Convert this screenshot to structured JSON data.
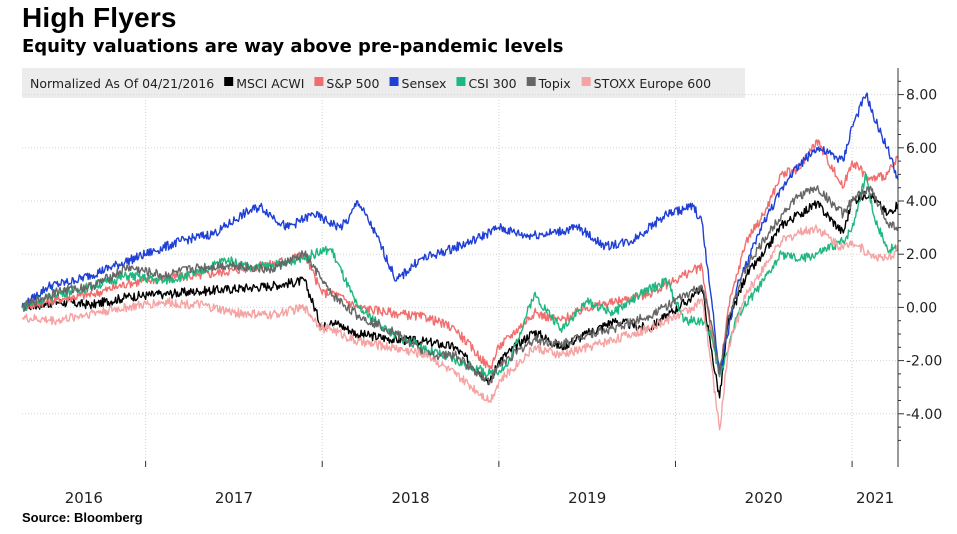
{
  "title": "High Flyers",
  "subtitle": "Equity valuations are way above pre-pandemic levels",
  "source": "Source: Bloomberg",
  "colors": {
    "MSCI ACWI": "#000000",
    "S&P 500": "#f26d6d",
    "Sensex": "#1f3fd6",
    "CSI 300": "#1db87f",
    "Topix": "#666666",
    "STOXX Europe 600": "#f5a3a3"
  },
  "chart_data": {
    "type": "line",
    "title": "High Flyers",
    "subtitle": "Equity valuations are way above pre-pandemic levels",
    "legend_note": "Normalized As Of 04/21/2016",
    "legend_position": "top",
    "grid": true,
    "ylim": [
      -6,
      9
    ],
    "yticks": [
      8,
      6,
      4,
      2,
      0,
      -2,
      -4
    ],
    "ytick_labels": [
      "8.00",
      "6.00",
      "4.00",
      "2.00",
      "0.00",
      "-2.00",
      "-4.00"
    ],
    "xlim": [
      2016.3,
      2021.26
    ],
    "xtick_labels": [
      "2016",
      "2017",
      "2018",
      "2019",
      "2020",
      "2021"
    ],
    "xtick_positions": [
      2016.65,
      2017.5,
      2018.5,
      2019.5,
      2020.5,
      2021.13
    ],
    "year_dividers": [
      2017.0,
      2018.0,
      2019.0,
      2020.0,
      2021.0
    ],
    "series": [
      {
        "name": "MSCI ACWI",
        "x": [
          2016.3,
          2016.5,
          2016.7,
          2016.9,
          2017.1,
          2017.3,
          2017.5,
          2017.7,
          2017.9,
          2018.0,
          2018.05,
          2018.2,
          2018.4,
          2018.6,
          2018.75,
          2018.95,
          2019.0,
          2019.2,
          2019.35,
          2019.5,
          2019.65,
          2019.85,
          2020.1,
          2020.15,
          2020.2,
          2020.25,
          2020.3,
          2020.4,
          2020.5,
          2020.6,
          2020.7,
          2020.8,
          2020.95,
          2021.0,
          2021.1,
          2021.2,
          2021.26
        ],
        "y": [
          0,
          0.2,
          0.1,
          0.4,
          0.5,
          0.6,
          0.7,
          0.8,
          1.0,
          -0.8,
          -0.5,
          -1.0,
          -1.2,
          -1.3,
          -1.5,
          -2.8,
          -2.0,
          -0.9,
          -1.5,
          -1.0,
          -0.5,
          -0.8,
          0.4,
          0.8,
          -1.5,
          -3.4,
          -0.5,
          1.2,
          2.0,
          3.1,
          3.5,
          3.9,
          2.8,
          4.0,
          4.3,
          3.5,
          3.9
        ]
      },
      {
        "name": "S&P 500",
        "x": [
          2016.3,
          2016.5,
          2016.7,
          2016.9,
          2017.1,
          2017.3,
          2017.5,
          2017.7,
          2017.9,
          2018.0,
          2018.05,
          2018.2,
          2018.4,
          2018.6,
          2018.75,
          2018.95,
          2019.0,
          2019.2,
          2019.35,
          2019.5,
          2019.65,
          2019.85,
          2020.1,
          2020.15,
          2020.2,
          2020.25,
          2020.3,
          2020.4,
          2020.5,
          2020.6,
          2020.7,
          2020.8,
          2020.95,
          2021.0,
          2021.1,
          2021.2,
          2021.26
        ],
        "y": [
          0,
          0.3,
          0.5,
          0.9,
          1.1,
          1.2,
          1.4,
          1.6,
          2.0,
          0.5,
          0.6,
          0.0,
          -0.2,
          -0.4,
          -0.8,
          -2.3,
          -1.5,
          -0.2,
          -0.5,
          0.0,
          0.2,
          0.5,
          1.4,
          1.5,
          -0.8,
          -2.6,
          0.0,
          2.5,
          3.5,
          5.0,
          5.2,
          6.3,
          4.5,
          5.5,
          4.8,
          5.0,
          5.6
        ]
      },
      {
        "name": "Sensex",
        "x": [
          2016.3,
          2016.45,
          2016.6,
          2016.8,
          2017.0,
          2017.2,
          2017.4,
          2017.55,
          2017.65,
          2017.8,
          2017.95,
          2018.1,
          2018.15,
          2018.2,
          2018.3,
          2018.42,
          2018.55,
          2018.65,
          2018.85,
          2019.0,
          2019.15,
          2019.3,
          2019.45,
          2019.6,
          2019.75,
          2019.95,
          2020.1,
          2020.15,
          2020.2,
          2020.25,
          2020.35,
          2020.5,
          2020.65,
          2020.8,
          2020.95,
          2021.0,
          2021.08,
          2021.12,
          2021.2,
          2021.26
        ],
        "y": [
          0,
          0.8,
          1.0,
          1.5,
          2.0,
          2.5,
          2.8,
          3.5,
          3.8,
          3.0,
          3.5,
          3.0,
          3.3,
          4.0,
          2.8,
          1.0,
          1.8,
          2.0,
          2.5,
          3.0,
          2.7,
          2.8,
          3.0,
          2.3,
          2.5,
          3.5,
          3.8,
          3.2,
          0.5,
          -2.5,
          0.8,
          3.2,
          5.0,
          6.0,
          5.5,
          6.8,
          8.0,
          7.2,
          6.0,
          4.8
        ]
      },
      {
        "name": "CSI 300",
        "x": [
          2016.3,
          2016.5,
          2016.7,
          2016.9,
          2017.1,
          2017.3,
          2017.45,
          2017.6,
          2017.75,
          2017.95,
          2018.05,
          2018.2,
          2018.4,
          2018.6,
          2018.75,
          2018.95,
          2019.05,
          2019.2,
          2019.35,
          2019.5,
          2019.65,
          2019.8,
          2019.95,
          2020.05,
          2020.15,
          2020.2,
          2020.25,
          2020.35,
          2020.5,
          2020.6,
          2020.7,
          2020.8,
          2020.95,
          2021.0,
          2021.08,
          2021.12,
          2021.2,
          2021.26
        ],
        "y": [
          0,
          0.5,
          0.8,
          1.2,
          1.0,
          1.3,
          1.8,
          1.5,
          1.6,
          2.0,
          2.2,
          0.0,
          -1.0,
          -1.6,
          -2.0,
          -2.5,
          -2.2,
          0.5,
          -0.8,
          0.2,
          -0.2,
          0.5,
          1.0,
          -0.5,
          -0.5,
          -1.0,
          -2.6,
          -0.3,
          1.0,
          2.0,
          1.8,
          2.0,
          2.5,
          3.0,
          5.0,
          3.5,
          2.2,
          2.2
        ]
      },
      {
        "name": "Topix",
        "x": [
          2016.3,
          2016.5,
          2016.7,
          2016.9,
          2017.1,
          2017.3,
          2017.5,
          2017.7,
          2017.9,
          2018.0,
          2018.05,
          2018.2,
          2018.4,
          2018.6,
          2018.75,
          2018.95,
          2019.0,
          2019.2,
          2019.35,
          2019.5,
          2019.65,
          2019.85,
          2020.1,
          2020.15,
          2020.2,
          2020.25,
          2020.3,
          2020.4,
          2020.5,
          2020.6,
          2020.7,
          2020.8,
          2020.95,
          2021.0,
          2021.1,
          2021.2,
          2021.26
        ],
        "y": [
          0,
          0.6,
          0.8,
          1.5,
          1.2,
          1.5,
          1.6,
          1.4,
          2.0,
          1.0,
          0.5,
          -0.3,
          -0.9,
          -1.8,
          -1.8,
          -2.8,
          -2.2,
          -1.2,
          -1.4,
          -1.0,
          -0.8,
          -0.3,
          0.6,
          0.8,
          -0.5,
          -2.5,
          -0.3,
          1.5,
          2.5,
          3.5,
          4.2,
          4.5,
          3.5,
          4.0,
          4.5,
          3.2,
          3.0
        ]
      },
      {
        "name": "STOXX Europe 600",
        "x": [
          2016.3,
          2016.5,
          2016.7,
          2016.9,
          2017.1,
          2017.3,
          2017.5,
          2017.7,
          2017.9,
          2018.0,
          2018.05,
          2018.2,
          2018.4,
          2018.6,
          2018.75,
          2018.95,
          2019.0,
          2019.2,
          2019.35,
          2019.5,
          2019.65,
          2019.85,
          2020.1,
          2020.15,
          2020.2,
          2020.25,
          2020.3,
          2020.4,
          2020.5,
          2020.6,
          2020.7,
          2020.8,
          2020.95,
          2021.0,
          2021.1,
          2021.2,
          2021.26
        ],
        "y": [
          -0.4,
          -0.5,
          -0.2,
          0.0,
          0.2,
          0.1,
          -0.2,
          -0.3,
          0.0,
          -0.8,
          -0.8,
          -1.3,
          -1.5,
          -1.8,
          -2.5,
          -3.5,
          -2.8,
          -1.5,
          -1.8,
          -1.5,
          -1.2,
          -0.8,
          0.0,
          0.3,
          -2.0,
          -4.6,
          -1.5,
          0.5,
          1.5,
          2.5,
          2.8,
          3.0,
          2.2,
          2.5,
          2.0,
          1.8,
          2.2
        ]
      }
    ]
  }
}
